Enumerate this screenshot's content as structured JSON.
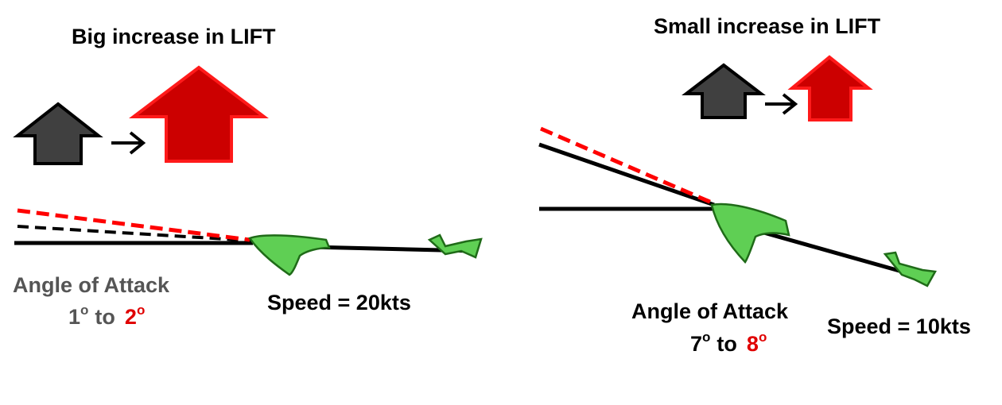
{
  "left_panel": {
    "title": "Big increase in LIFT",
    "aoa_label": "Angle of Attack",
    "aoa_from": "1",
    "aoa_to_word": "to",
    "aoa_target": "2",
    "degree_symbol": "o",
    "speed_label": "Speed = 20kts"
  },
  "right_panel": {
    "title": "Small increase in LIFT",
    "aoa_label": "Angle of Attack",
    "aoa_from": "7",
    "aoa_to_word": "to",
    "aoa_target": "8",
    "degree_symbol": "o",
    "speed_label": "Speed = 10kts"
  },
  "colors": {
    "before_arrow_fill": "#404040",
    "after_arrow_fill": "#cc0000",
    "after_arrow_stroke": "#ff1a1a",
    "aoa_grey_text": "#555555",
    "aoa_red_text": "#e00000",
    "glider_fill": "#5fcf54",
    "reference_line": "#000000",
    "increased_line": "#ff0000"
  },
  "icons": {
    "before_lift": "lift-arrow-icon",
    "after_lift": "lift-arrow-icon",
    "transition": "right-arrow-icon",
    "aircraft": "glider-icon"
  }
}
